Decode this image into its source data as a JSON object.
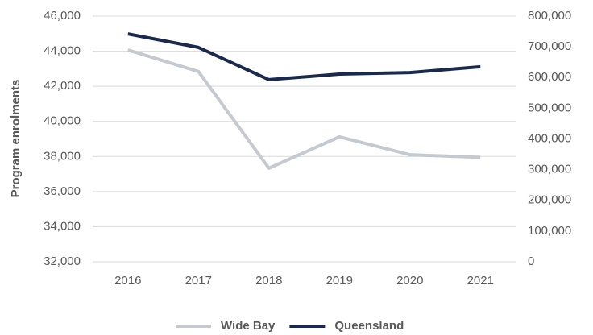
{
  "chart_data": {
    "type": "line",
    "y_label": "Program enrolments",
    "categories": [
      "2016",
      "2017",
      "2018",
      "2019",
      "2020",
      "2021"
    ],
    "series": [
      {
        "name": "Wide Bay",
        "color": "#c5c9d0",
        "values": [
          44070,
          42840,
          37330,
          39120,
          38100,
          37950
        ]
      },
      {
        "name": "Queensland",
        "color": "#1b2a4a",
        "axis": "y2",
        "values": [
          742000,
          698000,
          593000,
          611000,
          616000,
          635000
        ]
      }
    ],
    "ylim": [
      32000,
      46000
    ],
    "yticks": [
      {
        "value": 32000,
        "label": "32,000"
      },
      {
        "value": 34000,
        "label": "34,000"
      },
      {
        "value": 36000,
        "label": "36,000"
      },
      {
        "value": 38000,
        "label": "38,000"
      },
      {
        "value": 40000,
        "label": "40,000"
      },
      {
        "value": 42000,
        "label": "42,000"
      },
      {
        "value": 44000,
        "label": "44,000"
      },
      {
        "value": 46000,
        "label": "46,000"
      }
    ],
    "y2lim": [
      0,
      800000
    ],
    "y2ticks": [
      0,
      {
        "value": 100000,
        "label": "100,000"
      },
      {
        "value": 200000,
        "label": "200,000"
      },
      {
        "value": 300000,
        "label": "300,000"
      },
      {
        "value": 400000,
        "label": "400,000"
      },
      {
        "value": 500000,
        "label": "500,000"
      },
      {
        "value": 600000,
        "label": "600,000"
      },
      {
        "value": 700000,
        "label": "700,000"
      },
      {
        "value": 800000,
        "label": "800,000"
      }
    ],
    "grid": true,
    "legend": "bottom"
  }
}
